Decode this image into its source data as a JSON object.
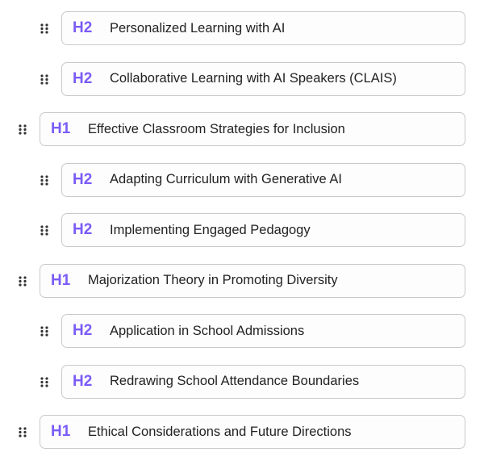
{
  "accent_color": "#7b5cf6",
  "outline": [
    {
      "level": "H2",
      "title": "Personalized Learning with AI"
    },
    {
      "level": "H2",
      "title": "Collaborative Learning with AI Speakers (CLAIS)"
    },
    {
      "level": "H1",
      "title": "Effective Classroom Strategies for Inclusion"
    },
    {
      "level": "H2",
      "title": "Adapting Curriculum with Generative AI"
    },
    {
      "level": "H2",
      "title": "Implementing Engaged Pedagogy"
    },
    {
      "level": "H1",
      "title": "Majorization Theory in Promoting Diversity"
    },
    {
      "level": "H2",
      "title": "Application in School Admissions"
    },
    {
      "level": "H2",
      "title": "Redrawing School Attendance Boundaries"
    },
    {
      "level": "H1",
      "title": "Ethical Considerations and Future Directions"
    }
  ]
}
